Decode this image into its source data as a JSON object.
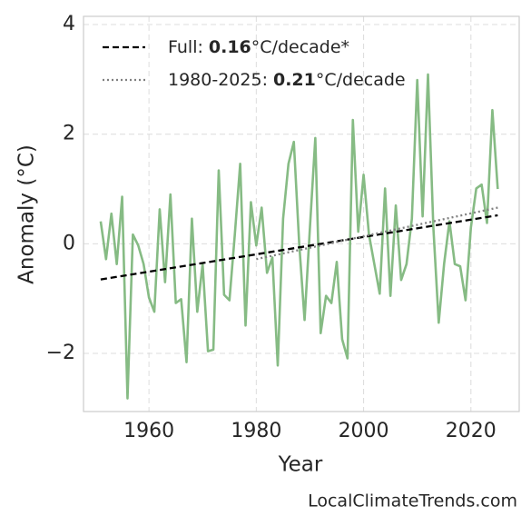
{
  "chart_data": {
    "type": "line",
    "xlabel": "Year",
    "ylabel": "Anomaly (°C)",
    "watermark": "LocalClimateTrends.com",
    "xlim": [
      1947.8,
      2029
    ],
    "ylim": [
      -3.06,
      4.15
    ],
    "xticks": [
      1960,
      1980,
      2000,
      2020
    ],
    "yticks": [
      {
        "value": -2,
        "label": "−2"
      },
      0,
      2,
      4
    ],
    "grid": true,
    "legend": "upper left",
    "series": [
      {
        "color": "#86bb84",
        "style": "solid",
        "x": [
          1951,
          1952,
          1953,
          1954,
          1955,
          1956,
          1957,
          1958,
          1959,
          1960,
          1961,
          1962,
          1963,
          1964,
          1965,
          1966,
          1967,
          1968,
          1969,
          1970,
          1971,
          1972,
          1973,
          1974,
          1975,
          1976,
          1977,
          1978,
          1979,
          1980,
          1981,
          1982,
          1983,
          1984,
          1985,
          1986,
          1987,
          1988,
          1989,
          1990,
          1991,
          1992,
          1993,
          1994,
          1995,
          1996,
          1997,
          1998,
          1999,
          2000,
          2001,
          2002,
          2003,
          2004,
          2005,
          2006,
          2007,
          2008,
          2009,
          2010,
          2011,
          2012,
          2013,
          2014,
          2015,
          2016,
          2017,
          2018,
          2019,
          2020,
          2021,
          2022,
          2023,
          2024,
          2025
        ],
        "values": [
          0.41,
          -0.28,
          0.55,
          -0.37,
          0.86,
          -2.82,
          0.17,
          -0.03,
          -0.37,
          -0.98,
          -1.24,
          0.63,
          -0.7,
          0.9,
          -1.08,
          -1.01,
          -2.16,
          0.46,
          -1.24,
          -0.37,
          -1.96,
          -1.93,
          1.34,
          -0.93,
          -1.03,
          0.17,
          1.46,
          -1.49,
          0.76,
          -0.03,
          0.66,
          -0.53,
          -0.25,
          -2.22,
          0.46,
          1.46,
          1.86,
          0,
          -1.39,
          0.3,
          1.93,
          -1.63,
          -0.95,
          -1.08,
          -0.33,
          -1.74,
          -2.09,
          2.26,
          0.22,
          1.26,
          0.17,
          -0.37,
          -0.91,
          1.01,
          -0.95,
          0.7,
          -0.66,
          -0.37,
          0.46,
          2.99,
          0.5,
          3.09,
          0.3,
          -1.44,
          -0.37,
          0.41,
          -0.37,
          -0.41,
          -1.03,
          0.3,
          1.01,
          1.08,
          0.38,
          2.44,
          1.0
        ]
      },
      {
        "name": "Full:",
        "slope": 0.16,
        "unit": "°C/decade*",
        "color": "#000000",
        "style": "dashed",
        "x": [
          1951,
          2025
        ],
        "values": [
          -0.65,
          0.52
        ]
      },
      {
        "name": "1980-2025:",
        "slope": 0.21,
        "unit": "°C/decade",
        "color": "#808080",
        "style": "dotted",
        "x": [
          1980,
          2025
        ],
        "values": [
          -0.28,
          0.66
        ]
      }
    ]
  }
}
